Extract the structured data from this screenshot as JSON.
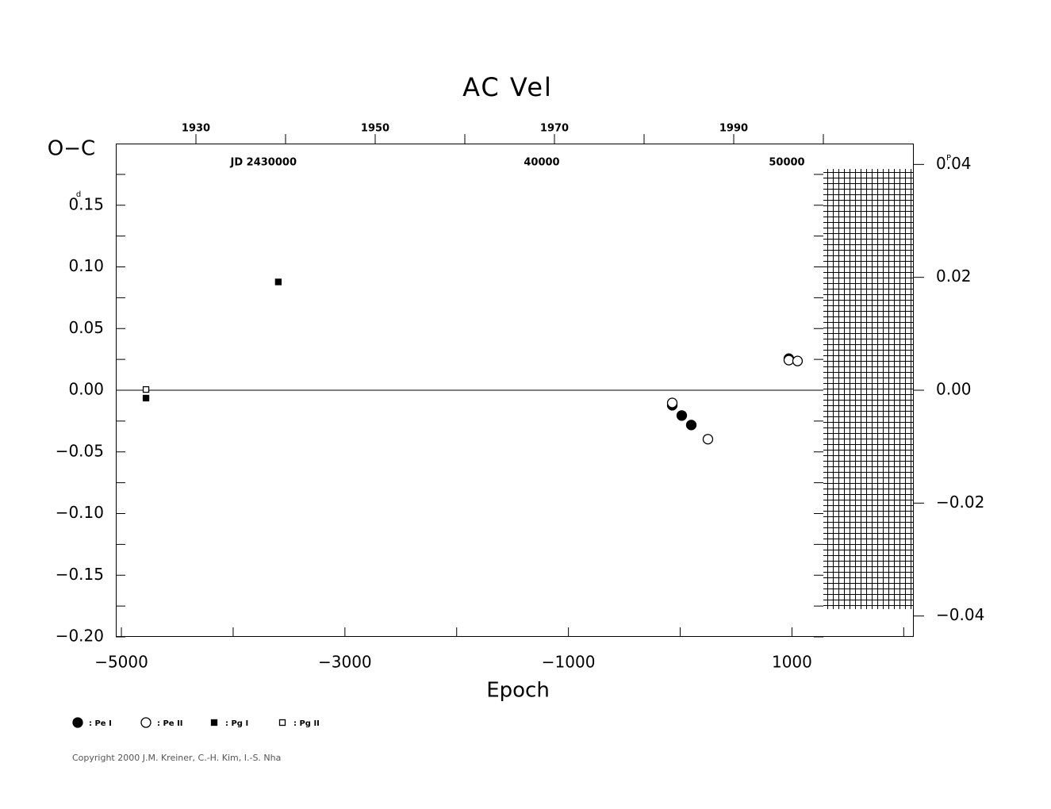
{
  "chart_data": {
    "type": "scatter",
    "title": "AC Vel",
    "y_label": "O−C",
    "x_label": "Epoch",
    "y_unit": "d",
    "y2_unit": "P",
    "xlim": [
      -5050,
      2090
    ],
    "xticks": [
      {
        "value": -5000,
        "label": "−5000"
      },
      {
        "value": -3000,
        "label": "−3000"
      },
      {
        "value": -1000,
        "label": "−1000"
      },
      1000
    ],
    "xminorticks": [
      -4000,
      -2000,
      0,
      2000
    ],
    "ylim": [
      -0.2,
      0.2
    ],
    "yticks": [
      {
        "value": -0.2,
        "label": "−0.20"
      },
      {
        "value": -0.15,
        "label": "−0.15"
      },
      {
        "value": -0.1,
        "label": "−0.10"
      },
      {
        "value": -0.05,
        "label": "−0.05"
      },
      {
        "value": 0,
        "label": "0.00"
      },
      0.05,
      {
        "value": 0.1,
        "label": "0.10"
      },
      0.15
    ],
    "yminorticks": [
      0.175,
      0.125,
      0.075,
      0.025,
      -0.025,
      -0.075,
      -0.125,
      -0.175
    ],
    "y2lim": [
      -0.0437,
      0.0437
    ],
    "y2ticks": [
      {
        "value": -0.04,
        "label": "−0.04"
      },
      {
        "value": -0.02,
        "label": "−0.02"
      },
      {
        "value": 0,
        "label": "0.00"
      },
      0.02,
      0.04
    ],
    "x2lim": [
      1921.06,
      2010.09
    ],
    "x2ticks": [
      1930,
      1950,
      1970,
      1990
    ],
    "x2minorticks": [
      1940,
      1960,
      1980,
      2000
    ],
    "x3lim": [
      2422621,
      2455178
    ],
    "x3ticks": [
      {
        "value": 2430000,
        "label": "JD 2430000"
      },
      {
        "value": 2440000,
        "label": "40000"
      },
      {
        "value": 2450000,
        "label": "50000"
      }
    ],
    "zero_line": true,
    "series": [
      {
        "name": ": Pe I",
        "marker": "circle",
        "filled": true,
        "color": "#000000",
        "x": [
          -71,
          14,
          99,
          972
        ],
        "values": [
          -0.0122,
          -0.0205,
          -0.0282,
          0.0256
        ]
      },
      {
        "name": ": Pe II",
        "marker": "circle",
        "filled": false,
        "color": "#000000",
        "x": [
          -71,
          248,
          972,
          1050
        ],
        "values": [
          -0.0103,
          -0.0397,
          0.0244,
          0.0237
        ]
      },
      {
        "name": ": Pg I",
        "marker": "square",
        "filled": true,
        "color": "#000000",
        "x": [
          -3596,
          -4780
        ],
        "values": [
          0.0878,
          -0.0064
        ]
      },
      {
        "name": ": Pg II",
        "marker": "square",
        "filled": false,
        "color": "#000000",
        "x": [
          -4780
        ],
        "values": [
          0.0006
        ]
      }
    ],
    "copyright": "Copyright 2000 J.M. Kreiner, C.-H. Kim, I.-S. Nha"
  }
}
